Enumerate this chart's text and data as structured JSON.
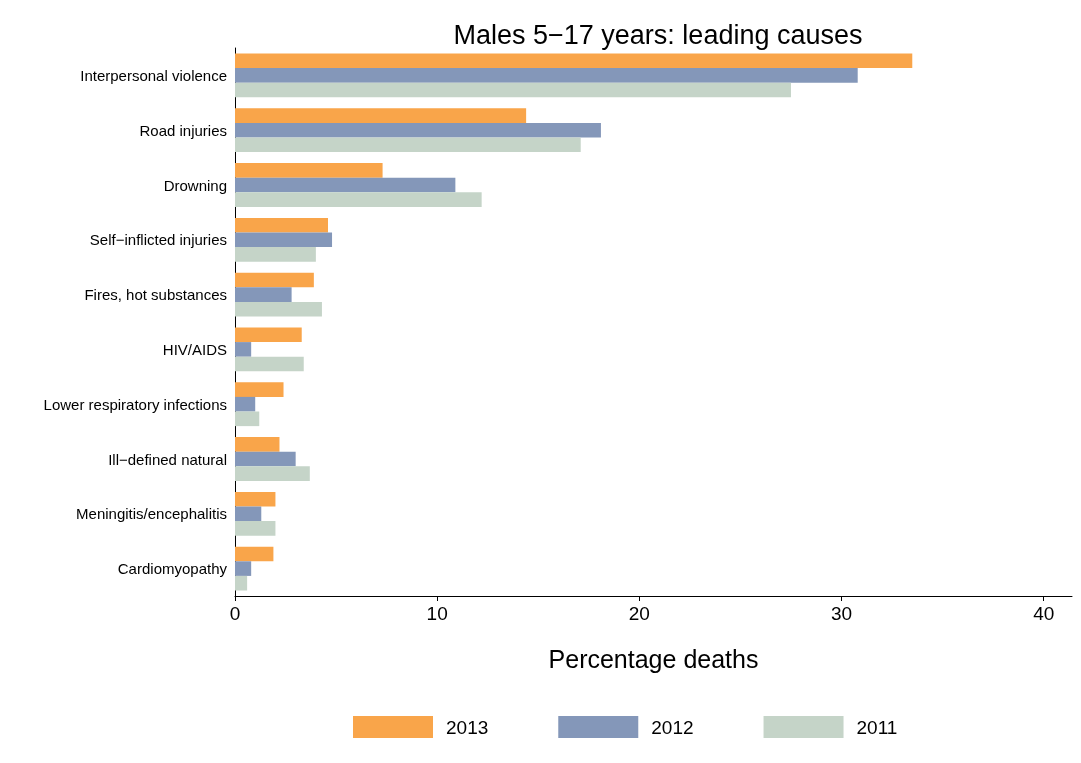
{
  "chart_data": {
    "type": "bar",
    "orientation": "horizontal",
    "title": "Males 5−17 years: leading causes",
    "xlabel": "Percentage deaths",
    "categories": [
      "Interpersonal violence",
      "Road injuries",
      "Drowning",
      "Self−inflicted injuries",
      "Fires, hot substances",
      "HIV/AIDS",
      "Lower respiratory infections",
      "Ill−defined natural",
      "Meningitis/encephalitis",
      "Cardiomyopathy"
    ],
    "series": [
      {
        "name": "2013",
        "color": "#f9a54a",
        "values": [
          33.5,
          14.4,
          7.3,
          4.6,
          3.9,
          3.3,
          2.4,
          2.2,
          2.0,
          1.9
        ]
      },
      {
        "name": "2012",
        "color": "#8497b9",
        "values": [
          30.8,
          18.1,
          10.9,
          4.8,
          2.8,
          0.8,
          1.0,
          3.0,
          1.3,
          0.8
        ]
      },
      {
        "name": "2011",
        "color": "#c5d4c8",
        "values": [
          27.5,
          17.1,
          12.2,
          4.0,
          4.3,
          3.4,
          1.2,
          3.7,
          2.0,
          0.6
        ]
      }
    ],
    "xlim": [
      0,
      41.4
    ],
    "xticks": [
      0,
      10,
      20,
      30,
      40
    ],
    "grid": false,
    "legend": "bottom"
  }
}
